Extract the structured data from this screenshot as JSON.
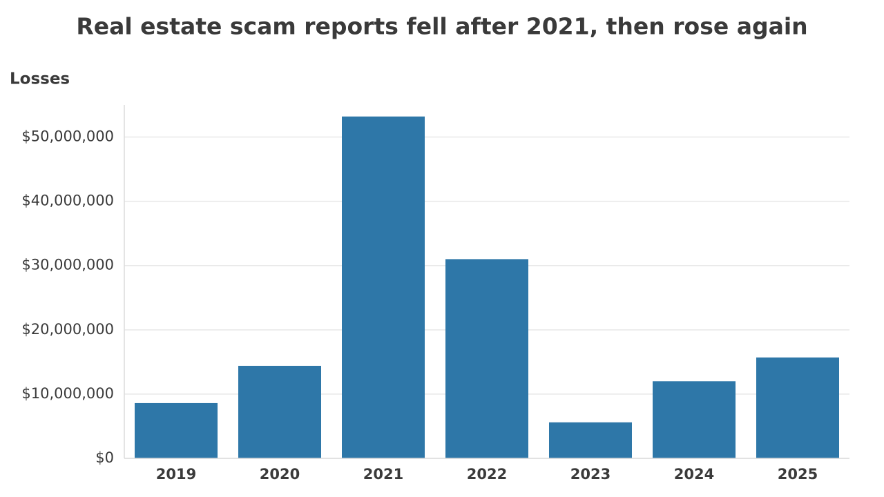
{
  "chart_data": {
    "type": "bar",
    "title": "Real estate scam reports fell after 2021, then rose again",
    "y_label": "Losses",
    "categories": [
      "2019",
      "2020",
      "2021",
      "2022",
      "2023",
      "2024",
      "2025"
    ],
    "values": [
      8600000,
      14400000,
      53200000,
      31000000,
      5600000,
      12000000,
      15700000
    ],
    "color": "#2e77a8",
    "ylim": [
      0,
      55000000
    ],
    "yticks": [
      {
        "value": 0,
        "label": "$0"
      },
      {
        "value": 10000000,
        "label": "$10,000,000"
      },
      {
        "value": 20000000,
        "label": "$20,000,000"
      },
      {
        "value": 30000000,
        "label": "$30,000,000"
      },
      {
        "value": 40000000,
        "label": "$40,000,000"
      },
      {
        "value": 50000000,
        "label": "$50,000,000"
      }
    ],
    "grid": true
  }
}
